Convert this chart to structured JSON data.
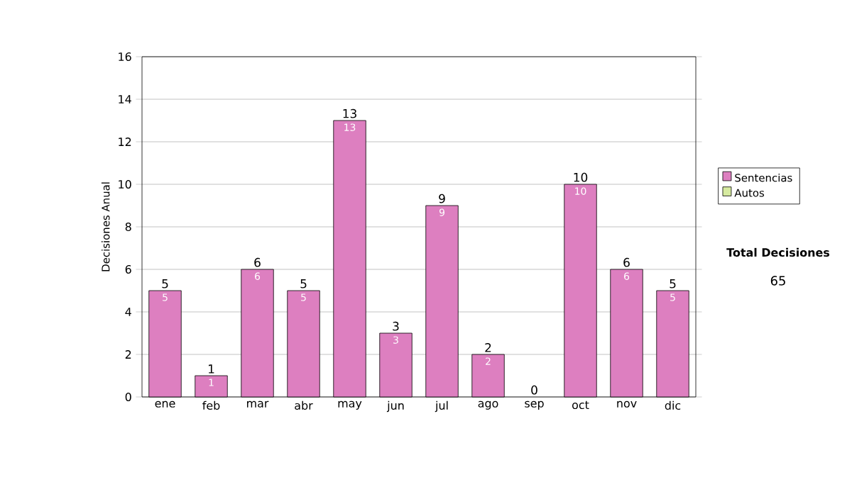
{
  "chart_data": {
    "type": "bar",
    "ylabel": "Decisiones Anual",
    "categories": [
      "ene",
      "feb",
      "mar",
      "abr",
      "may",
      "jun",
      "jul",
      "ago",
      "sep",
      "oct",
      "nov",
      "dic"
    ],
    "series": [
      {
        "name": "Sentencias",
        "color": "#dd7fc0",
        "values": [
          5,
          1,
          6,
          5,
          13,
          3,
          9,
          2,
          0,
          10,
          6,
          5
        ],
        "value_labels": [
          "5",
          "1",
          "6",
          "5",
          "13",
          "3",
          "9",
          "2",
          null,
          "10",
          "6",
          "5"
        ]
      },
      {
        "name": "Autos",
        "color": "#d6eaa0",
        "values": [
          0,
          0,
          0,
          0,
          0,
          0,
          0,
          0,
          0,
          0,
          0,
          0
        ]
      }
    ],
    "stacked": true,
    "totals": [
      "5",
      "1",
      "6",
      "5",
      "13",
      "3",
      "9",
      "2",
      "0",
      "10",
      "6",
      "5"
    ],
    "ylim": [
      0,
      16
    ],
    "yticks": [
      0,
      2,
      4,
      6,
      8,
      10,
      12,
      14,
      16
    ],
    "grid": "y",
    "legend": "right",
    "annotations": [
      "Total Decisiones",
      "65"
    ]
  }
}
